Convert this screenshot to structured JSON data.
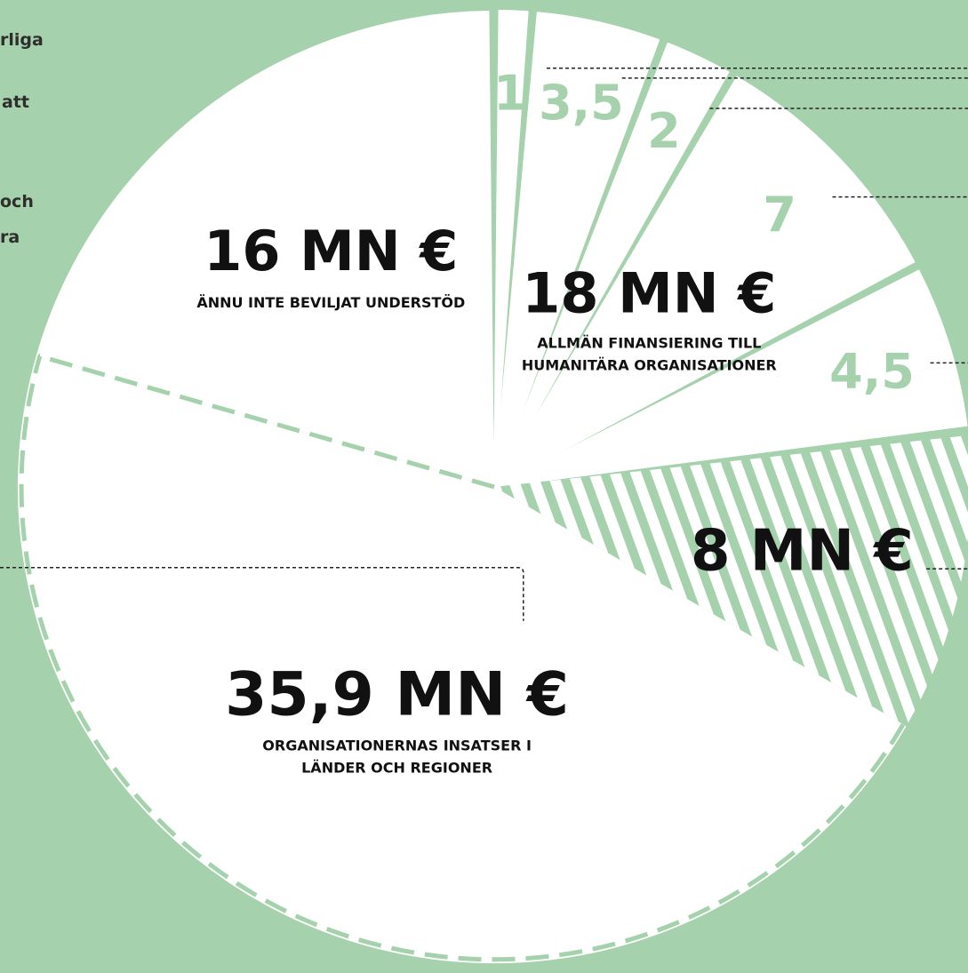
{
  "colors": {
    "background": "#a6d1ad",
    "slice_fill": "#ffffff",
    "accent": "#a6d1ad",
    "dark_text": "#111111"
  },
  "left_cut_text": [
    "rliga",
    "att",
    "och",
    "ra"
  ],
  "chart_data": {
    "type": "pie",
    "unit": "MN €",
    "title": "",
    "slices": [
      {
        "value": 1,
        "label": "1",
        "group": "general"
      },
      {
        "value": 3.5,
        "label": "3,5",
        "group": "general"
      },
      {
        "value": 2,
        "label": "2",
        "group": "general"
      },
      {
        "value": 7,
        "label": "7",
        "group": "general"
      },
      {
        "value": 4.5,
        "label": "4,5",
        "group": "general"
      },
      {
        "value": 8,
        "label": "8 MN €",
        "group": "striped"
      },
      {
        "value": 35.9,
        "label": "35,9 MN €",
        "caption": [
          "ORGANISATIONERNAS INSATSER I",
          "LÄNDER OCH REGIONER"
        ],
        "group": "country"
      },
      {
        "value": 16,
        "label": "16 MN €",
        "caption": [
          "ÄNNU INTE BEVILJAT UNDERSTÖD"
        ],
        "group": "unallocated"
      }
    ],
    "group_label": {
      "value_label": "18 MN €",
      "caption": [
        "ALLMÄN FINANSIERING TILL",
        "HUMANITÄRA ORGANISATIONER"
      ]
    }
  }
}
